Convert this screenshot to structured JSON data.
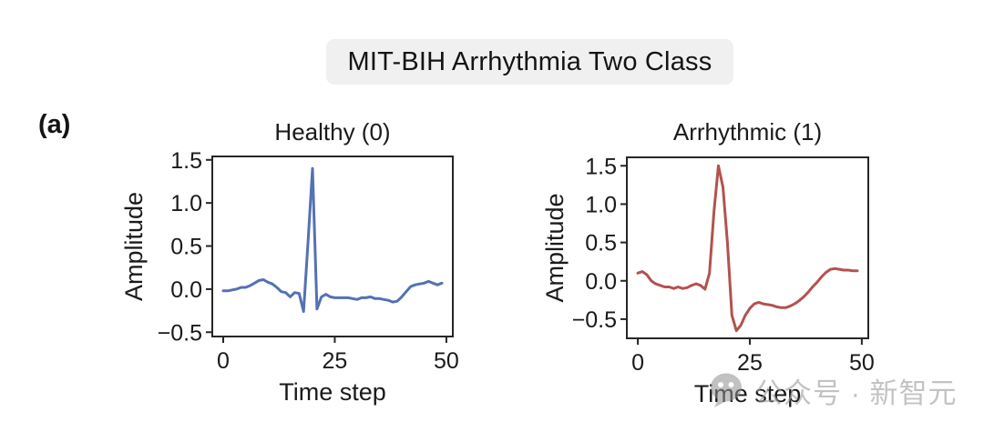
{
  "figure": {
    "title": "MIT-BIH Arrhythmia Two Class",
    "panel_label": "(a)"
  },
  "watermark": {
    "icon": "wechat-icon",
    "text": "公众号 · 新智元"
  },
  "colors": {
    "badge_background": "#f0f0f1",
    "healthy_line": "#5371b4",
    "arrhythmic_line": "#b3524e",
    "axes": "#262626",
    "watermark_gray": "#a0a0a0"
  },
  "chart_data": [
    {
      "type": "line",
      "title": "Healthy (0)",
      "xlabel": "Time step",
      "ylabel": "Amplitude",
      "line_color": "#5371b4",
      "grid": false,
      "legend": null,
      "xlim": [
        -2.45,
        51.45
      ],
      "ylim": [
        -0.55,
        1.54
      ],
      "xticks": [
        0,
        25,
        50
      ],
      "yticks": [
        1.5,
        1.0,
        0.5,
        0.0,
        -0.5
      ],
      "x": [
        0,
        1,
        2,
        3,
        4,
        5,
        6,
        7,
        8,
        9,
        10,
        11,
        12,
        13,
        14,
        15,
        16,
        17,
        18,
        19,
        20,
        21,
        22,
        23,
        24,
        25,
        26,
        27,
        28,
        29,
        30,
        31,
        32,
        33,
        34,
        35,
        36,
        37,
        38,
        39,
        40,
        41,
        42,
        43,
        44,
        45,
        46,
        47,
        48,
        49
      ],
      "y": [
        -0.02,
        -0.02,
        -0.01,
        0.0,
        0.02,
        0.02,
        0.04,
        0.07,
        0.1,
        0.11,
        0.08,
        0.06,
        0.02,
        -0.03,
        -0.04,
        -0.09,
        -0.04,
        -0.05,
        -0.26,
        0.55,
        1.4,
        -0.23,
        -0.09,
        -0.06,
        -0.09,
        -0.1,
        -0.1,
        -0.1,
        -0.1,
        -0.11,
        -0.12,
        -0.1,
        -0.1,
        -0.09,
        -0.11,
        -0.11,
        -0.12,
        -0.13,
        -0.15,
        -0.14,
        -0.09,
        -0.03,
        0.03,
        0.05,
        0.06,
        0.07,
        0.09,
        0.07,
        0.05,
        0.07
      ]
    },
    {
      "type": "line",
      "title": "Arrhythmic (1)",
      "xlabel": "Time step",
      "ylabel": "Amplitude",
      "line_color": "#b3524e",
      "grid": false,
      "legend": null,
      "xlim": [
        -2.45,
        51.45
      ],
      "ylim": [
        -0.75,
        1.61
      ],
      "xticks": [
        0,
        25,
        50
      ],
      "yticks": [
        1.5,
        1.0,
        0.5,
        0.0,
        -0.5
      ],
      "x": [
        0,
        1,
        2,
        3,
        4,
        5,
        6,
        7,
        8,
        9,
        10,
        11,
        12,
        13,
        14,
        15,
        16,
        17,
        18,
        19,
        20,
        21,
        22,
        23,
        24,
        25,
        26,
        27,
        28,
        29,
        30,
        31,
        32,
        33,
        34,
        35,
        36,
        37,
        38,
        39,
        40,
        41,
        42,
        43,
        44,
        45,
        46,
        47,
        48,
        49
      ],
      "y": [
        0.1,
        0.12,
        0.08,
        0.0,
        -0.04,
        -0.06,
        -0.08,
        -0.08,
        -0.1,
        -0.08,
        -0.1,
        -0.09,
        -0.06,
        -0.04,
        -0.06,
        -0.11,
        0.1,
        0.9,
        1.5,
        1.22,
        0.5,
        -0.45,
        -0.65,
        -0.58,
        -0.45,
        -0.36,
        -0.3,
        -0.28,
        -0.3,
        -0.31,
        -0.32,
        -0.34,
        -0.35,
        -0.35,
        -0.33,
        -0.3,
        -0.26,
        -0.21,
        -0.15,
        -0.08,
        -0.02,
        0.05,
        0.11,
        0.15,
        0.16,
        0.15,
        0.14,
        0.14,
        0.13,
        0.13
      ]
    }
  ]
}
